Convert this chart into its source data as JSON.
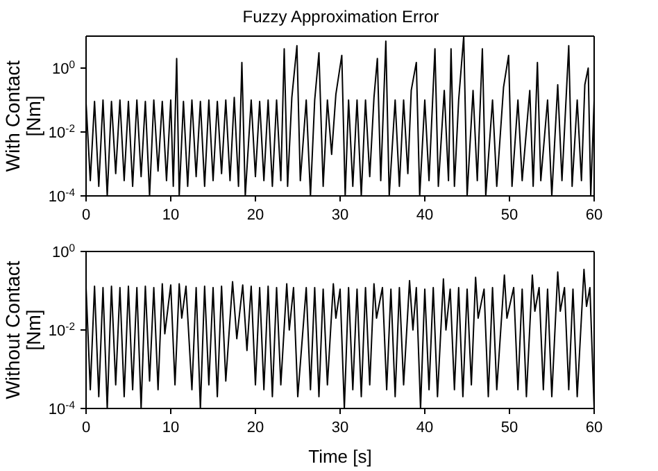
{
  "chart_data": [
    {
      "type": "line",
      "title": "Fuzzy Approximation Error",
      "ylabel": "With Contact\n[Nm]",
      "log": "y",
      "grid": false,
      "legend": false,
      "marker": "none",
      "line_style": "solid",
      "xlim": [
        0,
        60
      ],
      "xticks": [
        0,
        10,
        20,
        30,
        40,
        50,
        60
      ],
      "ylim": [
        0.0001,
        10
      ],
      "yticks": [
        {
          "value": 0.0001,
          "label": "10$^{-4}$"
        },
        {
          "value": 0.01,
          "label": "10$^{-2}$"
        },
        {
          "value": 1,
          "label": "10$^{0}$"
        }
      ],
      "series": [
        {
          "color": "#000000",
          "x": [
            0,
            0.5,
            1,
            1.5,
            2,
            2.5,
            3,
            3.5,
            4,
            4.5,
            5,
            5.5,
            6,
            6.5,
            7,
            7.5,
            8,
            8.5,
            9,
            9.5,
            10,
            10.3,
            10.7,
            11,
            11.5,
            12,
            12.5,
            13,
            13.5,
            14,
            14.5,
            15,
            15.5,
            16,
            16.5,
            17,
            17.5,
            18,
            18.4,
            18.8,
            19.5,
            20,
            20.5,
            21,
            21.5,
            22,
            22.5,
            23,
            23.4,
            23.8,
            24.3,
            24.9,
            25.3,
            26,
            26.5,
            27,
            27.5,
            28,
            28.5,
            29,
            29.5,
            30.2,
            30.6,
            31,
            31.5,
            32,
            32.5,
            33,
            33.5,
            34,
            34.4,
            34.8,
            35.4,
            35.8,
            36.5,
            37,
            37.5,
            38,
            38.4,
            39,
            39.4,
            40,
            40.5,
            41.2,
            41.6,
            42.3,
            42.8,
            43.1,
            43.5,
            44,
            44.6,
            45,
            45.7,
            46.2,
            46.8,
            47.2,
            48,
            48.5,
            49.3,
            49.9,
            50.3,
            51,
            51.5,
            52.4,
            52.8,
            53.3,
            53.7,
            54.5,
            55,
            55.7,
            56.2,
            57,
            57.4,
            58,
            58.5,
            58.9,
            59.3,
            59.6,
            60
          ],
          "values": [
            0.08,
            0.0003,
            0.09,
            0.0002,
            0.1,
            0.0001,
            0.09,
            0.0005,
            0.1,
            0.0003,
            0.09,
            0.0002,
            0.1,
            0.0004,
            0.09,
            0.0001,
            0.1,
            0.0006,
            0.09,
            0.0003,
            0.1,
            0.0002,
            2,
            0.0001,
            0.09,
            0.0002,
            0.1,
            0.0004,
            0.09,
            0.0002,
            0.1,
            0.0003,
            0.09,
            0.0005,
            0.1,
            0.0003,
            0.12,
            0.0002,
            1.5,
            0.0001,
            0.1,
            0.0004,
            0.09,
            0.0003,
            0.1,
            0.0002,
            0.1,
            0.0003,
            4,
            0.0002,
            0.12,
            5,
            0.0003,
            0.1,
            0.0001,
            0.1,
            3,
            0.0002,
            0.1,
            0.002,
            0.15,
            2.5,
            0.0001,
            0.1,
            0.0002,
            0.1,
            0.0001,
            0.1,
            0.0004,
            0.12,
            2,
            0.0003,
            7,
            0.0001,
            0.1,
            0.0002,
            0.1,
            0.0005,
            0.2,
            1.5,
            0.0001,
            0.1,
            0.0003,
            4,
            0.0002,
            0.2,
            0.0003,
            4,
            0.0002,
            0.1,
            10,
            0.0001,
            0.2,
            0.0003,
            4,
            0.0001,
            0.1,
            0.0002,
            0.25,
            2.5,
            0.0002,
            0.1,
            0.0003,
            0.2,
            0.0002,
            1.5,
            0.0003,
            0.1,
            0.0001,
            0.3,
            0.0003,
            5,
            0.0002,
            0.1,
            0.0003,
            0.3,
            1,
            0.0001,
            0.1
          ]
        }
      ]
    },
    {
      "type": "line",
      "xlabel": "Time [s]",
      "ylabel": "Without Contact\n[Nm]",
      "log": "y",
      "grid": false,
      "legend": false,
      "marker": "none",
      "line_style": "solid",
      "xlim": [
        0,
        60
      ],
      "xticks": [
        0,
        10,
        20,
        30,
        40,
        50,
        60
      ],
      "ylim": [
        0.0001,
        1
      ],
      "yticks": [
        {
          "value": 0.0001,
          "label": "10$^{-4}$"
        },
        {
          "value": 0.01,
          "label": "10$^{-2}$"
        },
        {
          "value": 1,
          "label": "10$^{0}$"
        }
      ],
      "series": [
        {
          "color": "#000000",
          "x": [
            0,
            0.5,
            1,
            1.5,
            2,
            2.5,
            3,
            3.5,
            4,
            4.5,
            5,
            5.5,
            6,
            6.5,
            7,
            7.5,
            8,
            8.5,
            9,
            9.3,
            10,
            10.5,
            11,
            11.3,
            11.8,
            12.5,
            13,
            13.5,
            14,
            14.5,
            15,
            15.5,
            16,
            16.5,
            17.3,
            17.8,
            18.5,
            19,
            19.5,
            20,
            20.5,
            21,
            21.5,
            22,
            22.5,
            23,
            23.7,
            24,
            24.5,
            25,
            26,
            26.5,
            27,
            27.5,
            28,
            28.5,
            29.2,
            29.5,
            30,
            30.5,
            31,
            31.5,
            32,
            32.5,
            33,
            33.5,
            34,
            34.3,
            35,
            35.5,
            36,
            36.5,
            37,
            37.5,
            38.2,
            38.6,
            39,
            39.5,
            40,
            40.5,
            41,
            41.5,
            42.2,
            42.5,
            43,
            43.5,
            44,
            44.5,
            45,
            45.5,
            46,
            46.3,
            47,
            47.5,
            48,
            48.5,
            49.4,
            49.7,
            50.5,
            51,
            51.5,
            52,
            52.7,
            53,
            53.5,
            54,
            54.5,
            55,
            55.7,
            56,
            56.5,
            57,
            57.5,
            58,
            58.8,
            59.1,
            59.5,
            60
          ],
          "values": [
            0.12,
            0.0003,
            0.13,
            0.0002,
            0.12,
            0.0001,
            0.13,
            0.0004,
            0.12,
            0.0002,
            0.13,
            0.0003,
            0.12,
            0.0001,
            0.13,
            0.0005,
            0.12,
            0.0003,
            0.15,
            0.008,
            0.14,
            0.0004,
            0.15,
            0.02,
            0.13,
            0.0003,
            0.12,
            0.0001,
            0.13,
            0.0004,
            0.12,
            0.0002,
            0.13,
            0.0005,
            0.17,
            0.006,
            0.14,
            0.003,
            0.13,
            0.0004,
            0.12,
            0.0003,
            0.13,
            0.0002,
            0.12,
            0.0004,
            0.15,
            0.01,
            0.12,
            0.0002,
            0.12,
            0.0003,
            0.12,
            0.0002,
            0.11,
            0.0004,
            0.15,
            0.02,
            0.11,
            0.0001,
            0.12,
            0.0003,
            0.11,
            0.0002,
            0.12,
            0.0004,
            0.15,
            0.02,
            0.12,
            0.0003,
            0.11,
            0.0002,
            0.12,
            0.0004,
            0.18,
            0.01,
            0.12,
            0.0001,
            0.11,
            0.0003,
            0.12,
            0.0002,
            0.2,
            0.01,
            0.11,
            0.0003,
            0.12,
            0.0002,
            0.11,
            0.0004,
            0.22,
            0.02,
            0.11,
            0.0002,
            0.12,
            0.0003,
            0.25,
            0.02,
            0.12,
            0.0003,
            0.11,
            0.0002,
            0.25,
            0.03,
            0.12,
            0.0003,
            0.11,
            0.0002,
            0.3,
            0.03,
            0.12,
            0.0003,
            0.11,
            0.0002,
            0.35,
            0.04,
            0.12,
            0.0001
          ]
        }
      ]
    }
  ]
}
